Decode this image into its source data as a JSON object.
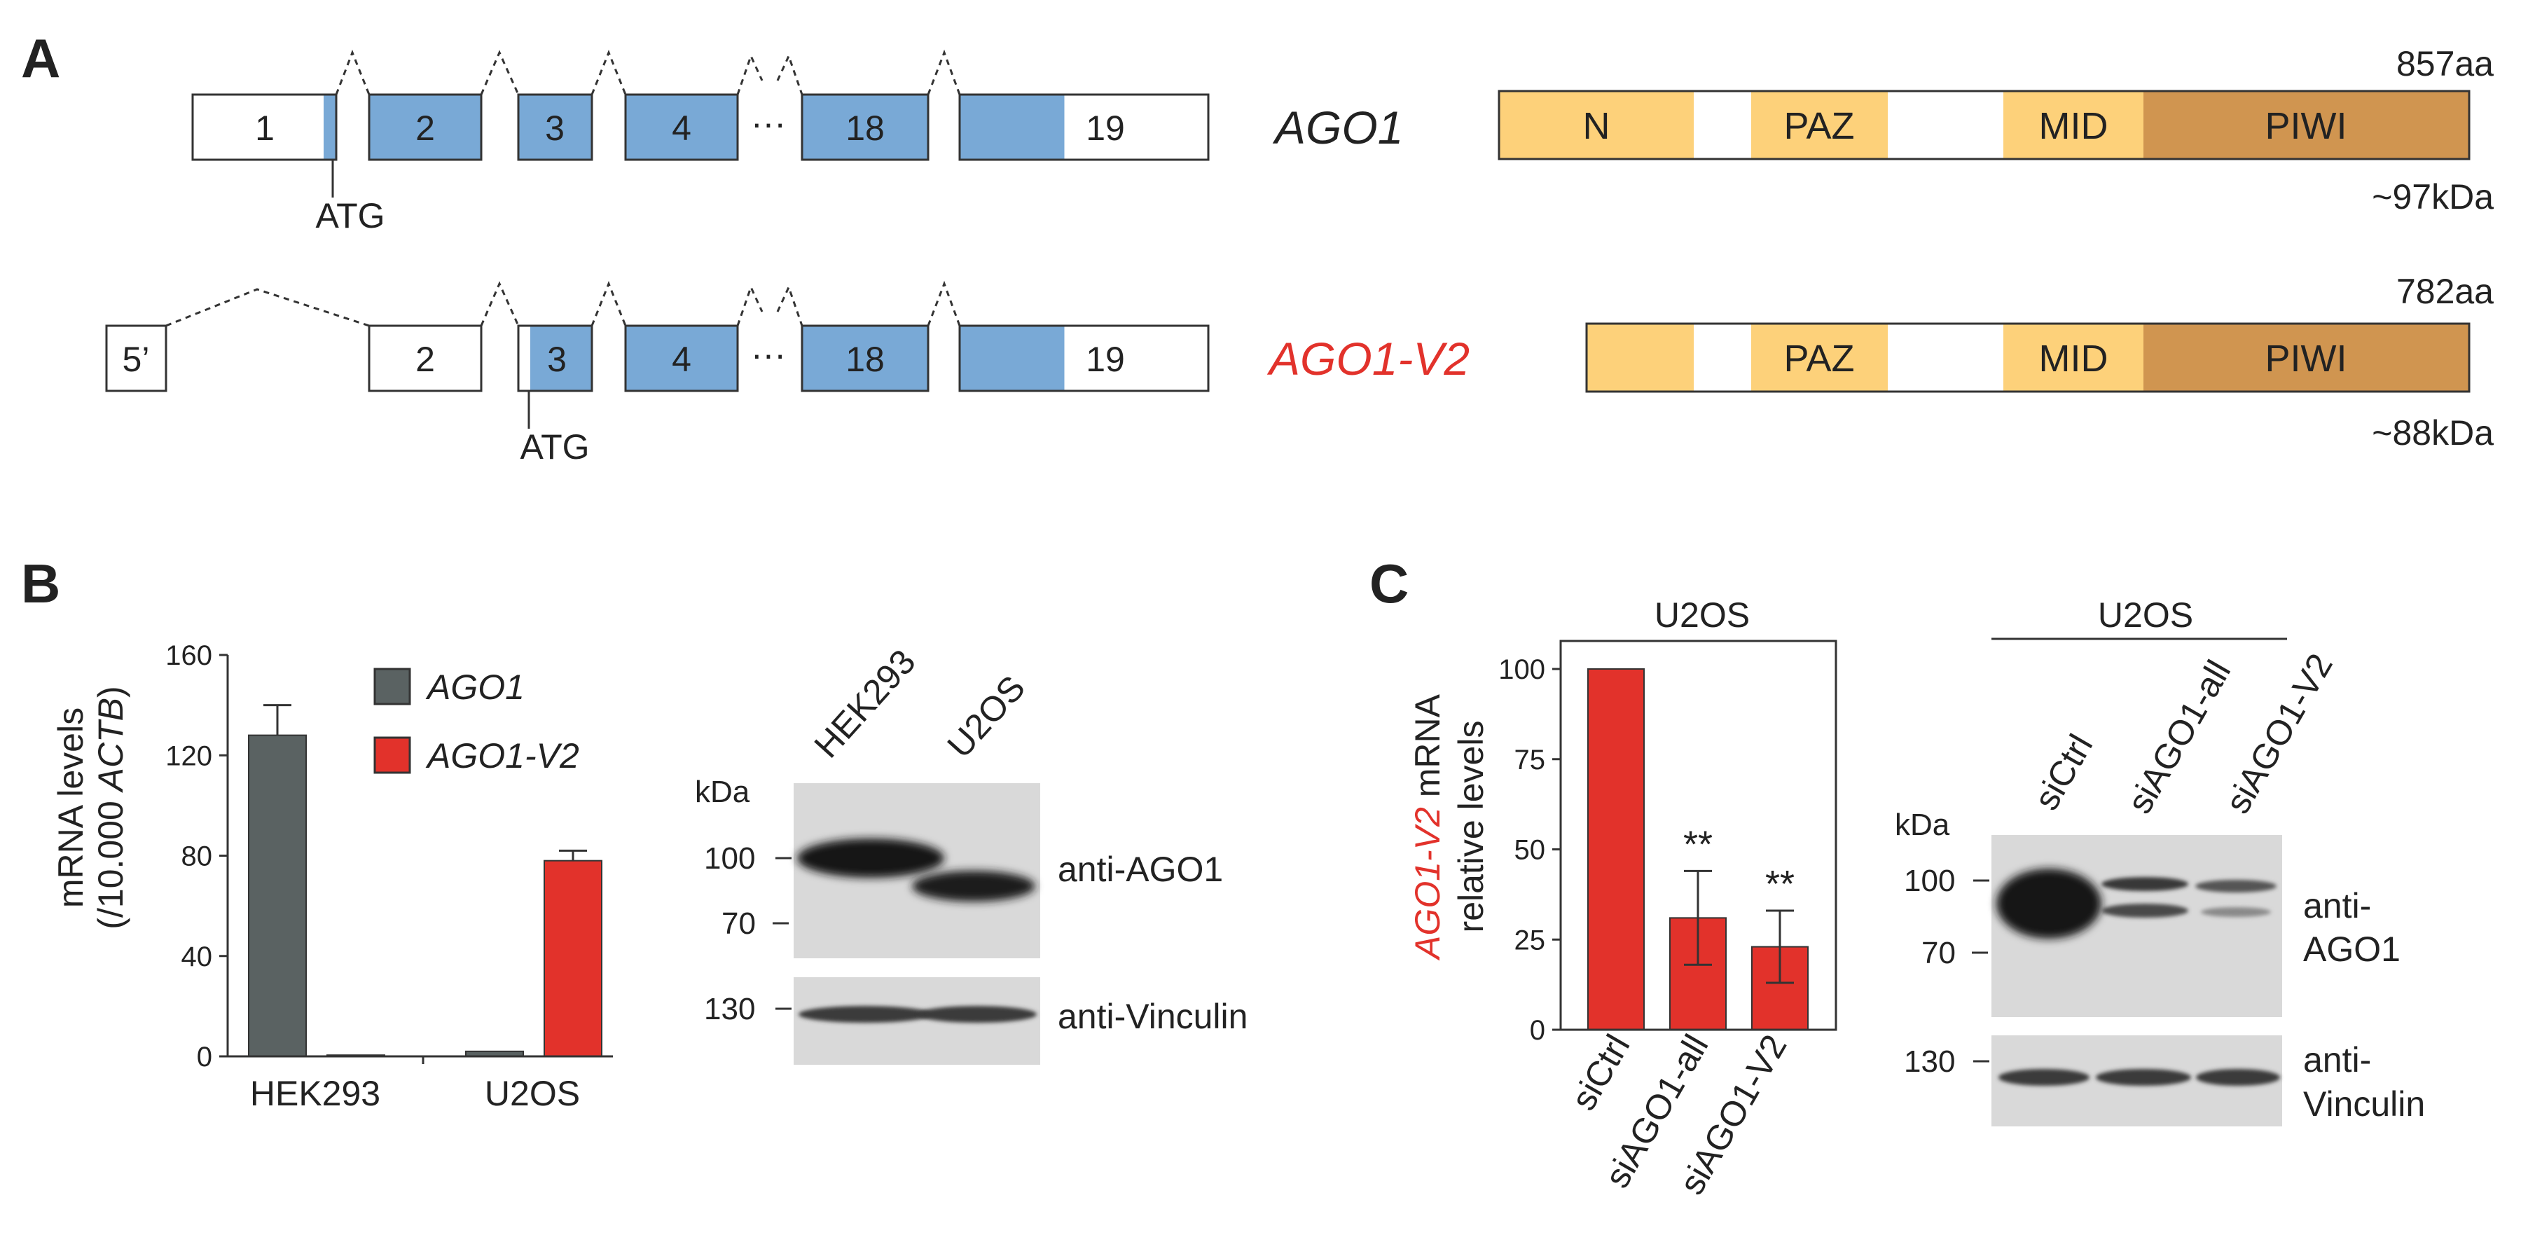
{
  "colors": {
    "coding": "#79a9d6",
    "utr": "#ffffff",
    "domain_light": "#fdd17a",
    "domain_piwi": "#d09550",
    "ago1_bar": "#5a6262",
    "v2_bar": "#e2322b",
    "v2_text": "#e2322b"
  },
  "panel_a": {
    "label": "A",
    "ago1": {
      "gene": "AGO1",
      "exons": [
        "1",
        "2",
        "3",
        "4",
        "18",
        "19"
      ],
      "ellipsis": "···",
      "start_codon": "ATG",
      "length": "857aa",
      "mass": "~97kDa",
      "domains": [
        "N",
        "PAZ",
        "MID",
        "PIWI"
      ]
    },
    "v2": {
      "gene": "AGO1-V2",
      "exons": [
        "5’",
        "2",
        "3",
        "4",
        "18",
        "19"
      ],
      "ellipsis": "···",
      "start_codon": "ATG",
      "length": "782aa",
      "mass": "~88kDa",
      "domains": [
        "PAZ",
        "MID",
        "PIWI"
      ]
    }
  },
  "panel_b": {
    "label": "B",
    "chart_data": {
      "type": "bar",
      "categories": [
        "HEK293",
        "U2OS"
      ],
      "series": [
        {
          "name": "AGO1",
          "values": [
            128,
            2
          ],
          "errors": [
            12,
            0
          ]
        },
        {
          "name": "AGO1-V2",
          "values": [
            0.5,
            78
          ],
          "errors": [
            0,
            4
          ]
        }
      ],
      "ylabel_line1": "mRNA levels",
      "ylabel_line2_prefix": "(/10.000 ",
      "ylabel_line2_gene": "ACTB",
      "ylabel_line2_suffix": ")",
      "ylim": [
        0,
        160
      ],
      "yticks": [
        "0",
        "40",
        "80",
        "120",
        "160"
      ],
      "legend": "top-right"
    },
    "blot": {
      "lanes": [
        "HEK293",
        "U2OS"
      ],
      "unit": "kDa",
      "markers_top": [
        "100",
        "70"
      ],
      "markers_bottom": [
        "130"
      ],
      "antibody_top": "anti-AGO1",
      "antibody_bottom": "anti-Vinculin"
    }
  },
  "panel_c": {
    "label": "C",
    "chart_data": {
      "type": "bar",
      "title": "U2OS",
      "categories": [
        "siCtrl",
        "siAGO1-all",
        "siAGO1-V2"
      ],
      "values": [
        100,
        31,
        23
      ],
      "errors": [
        0,
        13,
        10
      ],
      "significance": [
        "",
        "**",
        "**"
      ],
      "ylabel_gene": "AGO1-V2",
      "ylabel_line1_suffix": " mRNA",
      "ylabel_line2": "relative levels",
      "ylim": [
        0,
        110
      ],
      "yticks": [
        "0",
        "25",
        "50",
        "75",
        "100"
      ]
    },
    "blot": {
      "cell_line": "U2OS",
      "lanes": [
        "siCtrl",
        "siAGO1-all",
        "siAGO1-V2"
      ],
      "unit": "kDa",
      "markers_top": [
        "100",
        "70"
      ],
      "markers_bottom": [
        "130"
      ],
      "antibody_top_1": "anti-",
      "antibody_top_2": "AGO1",
      "antibody_bottom_1": "anti-",
      "antibody_bottom_2": "Vinculin"
    }
  }
}
